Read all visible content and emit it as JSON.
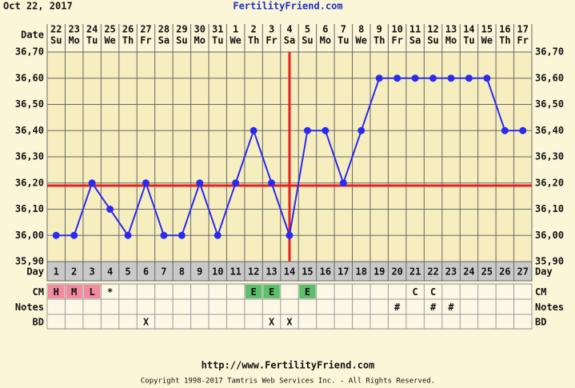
{
  "chart_data": {
    "type": "line",
    "date": "Oct 22, 2017",
    "title": "FertilityFriend.com",
    "url": "http://www.FertilityFriend.com",
    "copyright": "Copyright 1998-2017 Tamtris Web Services Inc. - All Rights Reserved.",
    "row_labels": {
      "date": "Date",
      "day": "Day",
      "cm": "CM",
      "notes": "Notes",
      "bd": "BD"
    },
    "dates": [
      "22",
      "23",
      "24",
      "25",
      "26",
      "27",
      "28",
      "29",
      "30",
      "31",
      "1",
      "2",
      "3",
      "4",
      "5",
      "6",
      "7",
      "8",
      "9",
      "10",
      "11",
      "12",
      "13",
      "14",
      "15",
      "16",
      "17"
    ],
    "weekdays": [
      "Su",
      "Mo",
      "Tu",
      "We",
      "Th",
      "Fr",
      "Sa",
      "Su",
      "Mo",
      "Tu",
      "We",
      "Th",
      "Fr",
      "Sa",
      "Su",
      "Mo",
      "Tu",
      "We",
      "Th",
      "Fr",
      "Sa",
      "Su",
      "Mo",
      "Tu",
      "We",
      "Th",
      "Fr"
    ],
    "categories": [
      1,
      2,
      3,
      4,
      5,
      6,
      7,
      8,
      9,
      10,
      11,
      12,
      13,
      14,
      15,
      16,
      17,
      18,
      19,
      20,
      21,
      22,
      23,
      24,
      25,
      26,
      27
    ],
    "values": [
      36.0,
      36.0,
      36.2,
      36.1,
      36.0,
      36.2,
      36.0,
      36.0,
      36.2,
      36.0,
      36.2,
      36.4,
      36.2,
      36.0,
      36.4,
      36.4,
      36.2,
      36.4,
      36.6,
      36.6,
      36.6,
      36.6,
      36.6,
      36.6,
      36.6,
      36.4,
      36.4
    ],
    "color": "#2a2af0",
    "coverline": 36.19,
    "ovulation_day": 14,
    "marker_color": "#e82020",
    "cm": [
      "H",
      "M",
      "L",
      "*",
      null,
      null,
      null,
      null,
      null,
      null,
      null,
      "E",
      "E",
      null,
      "E",
      null,
      null,
      null,
      null,
      null,
      "C",
      "C",
      null,
      null,
      null,
      null,
      null
    ],
    "cm_colors": {
      "H": "#f28aa0",
      "M": "#f28aa0",
      "L": "#f28aa0",
      "E": "#5cbf6c"
    },
    "notes": [
      null,
      null,
      null,
      null,
      null,
      null,
      null,
      null,
      null,
      null,
      null,
      null,
      null,
      null,
      null,
      null,
      null,
      null,
      null,
      "#",
      null,
      "#",
      "#",
      null,
      null,
      null,
      null
    ],
    "bd": [
      null,
      null,
      null,
      null,
      null,
      "X",
      null,
      null,
      null,
      null,
      null,
      null,
      "X",
      "X",
      null,
      null,
      null,
      null,
      null,
      null,
      null,
      null,
      null,
      null,
      null,
      null,
      null
    ],
    "ylim": [
      35.9,
      36.7
    ],
    "yticks": [
      {
        "value": 35.9,
        "label": "35,90"
      },
      {
        "value": 36.0,
        "label": "36,00"
      },
      {
        "value": 36.1,
        "label": "36,10"
      },
      {
        "value": 36.2,
        "label": "36,20"
      },
      {
        "value": 36.3,
        "label": "36,30"
      },
      {
        "value": 36.4,
        "label": "36,40"
      },
      {
        "value": 36.5,
        "label": "36,50"
      },
      {
        "value": 36.6,
        "label": "36,60"
      },
      {
        "value": 36.7,
        "label": "36,70"
      }
    ],
    "grid": true
  }
}
